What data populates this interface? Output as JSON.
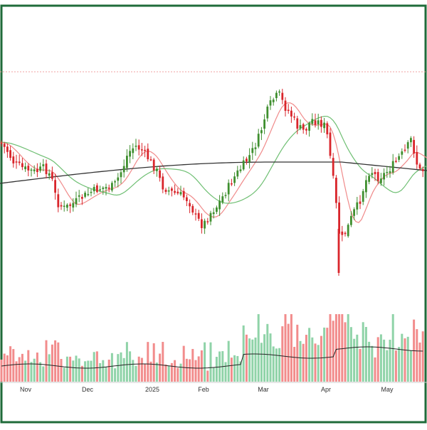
{
  "colors": {
    "frame": "#1f6b3a",
    "up": "#3f8f2f",
    "down": "#d9252b",
    "sma20": "#f08a8a",
    "sma50": "#6fbf73",
    "sma200": "#333333",
    "vol_up": "#8fd3a8",
    "vol_down": "#f28c8c",
    "vol_ma": "#222222",
    "ref_line": "#f2a0a0"
  },
  "chart_data": {
    "type": "candlestick",
    "title": "",
    "xlabel": "",
    "ylabel": "",
    "x_tick_labels": [
      "Nov",
      "Dec",
      "2025",
      "Feb",
      "Mar",
      "Apr",
      "May"
    ],
    "series": [
      {
        "name": "",
        "kind": "candles"
      },
      {
        "name": "",
        "kind": "sma-20"
      },
      {
        "name": "",
        "kind": "sma-50"
      },
      {
        "name": "",
        "kind": "sma-200"
      },
      {
        "name": "",
        "kind": "volume"
      }
    ],
    "grid": false,
    "legend": "none"
  }
}
